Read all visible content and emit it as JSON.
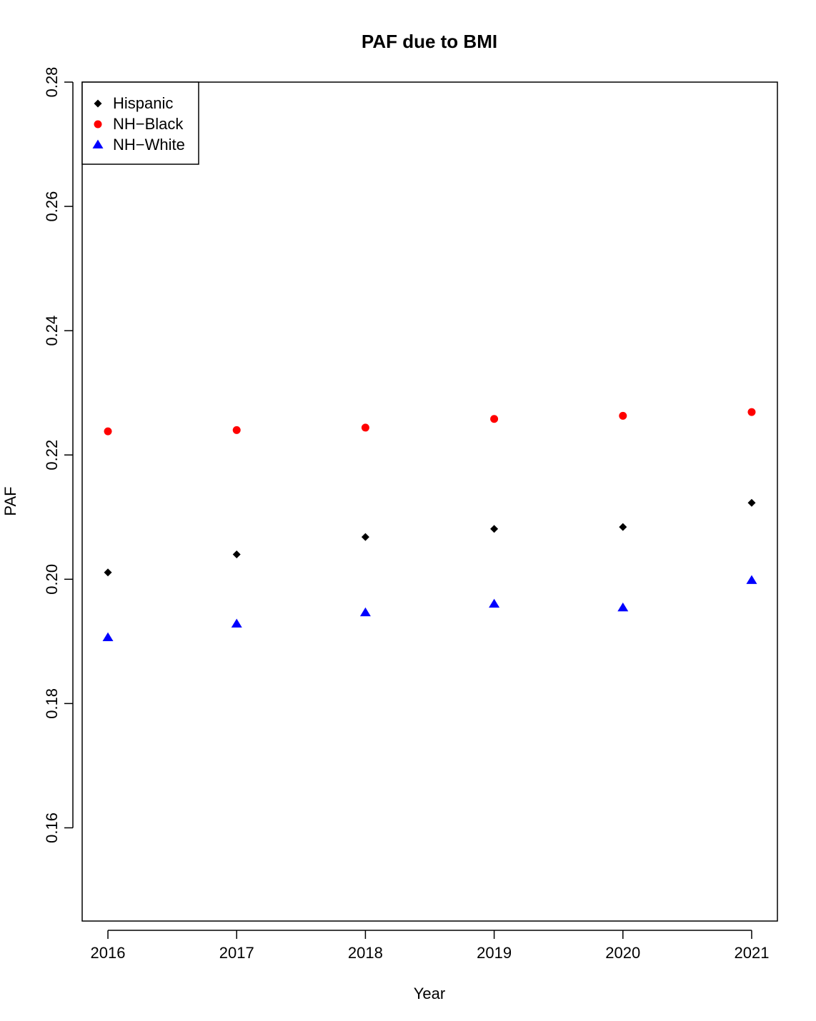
{
  "chart_data": {
    "type": "scatter",
    "title": "PAF due to BMI",
    "xlabel": "Year",
    "ylabel": "PAF",
    "x": [
      2016,
      2017,
      2018,
      2019,
      2020,
      2021
    ],
    "xticks": [
      "2016",
      "2017",
      "2018",
      "2019",
      "2020",
      "2021"
    ],
    "yticks": [
      "0.16",
      "0.18",
      "0.20",
      "0.22",
      "0.24",
      "0.26",
      "0.28"
    ],
    "ylim": [
      0.145,
      0.28
    ],
    "xlim": [
      2015.8,
      2021.2
    ],
    "grid": false,
    "legend_position": "top-left",
    "series": [
      {
        "name": "Hispanic",
        "marker": "diamond",
        "color": "#000000",
        "values": [
          0.2011,
          0.204,
          0.2068,
          0.2081,
          0.2084,
          0.2123
        ]
      },
      {
        "name": "NH−Black",
        "marker": "circle",
        "color": "#ff0000",
        "values": [
          0.2238,
          0.224,
          0.2244,
          0.2258,
          0.2263,
          0.2269
        ]
      },
      {
        "name": "NH−White",
        "marker": "triangle",
        "color": "#0000ff",
        "values": [
          0.1906,
          0.1928,
          0.1946,
          0.196,
          0.1954,
          0.1998
        ]
      }
    ]
  }
}
